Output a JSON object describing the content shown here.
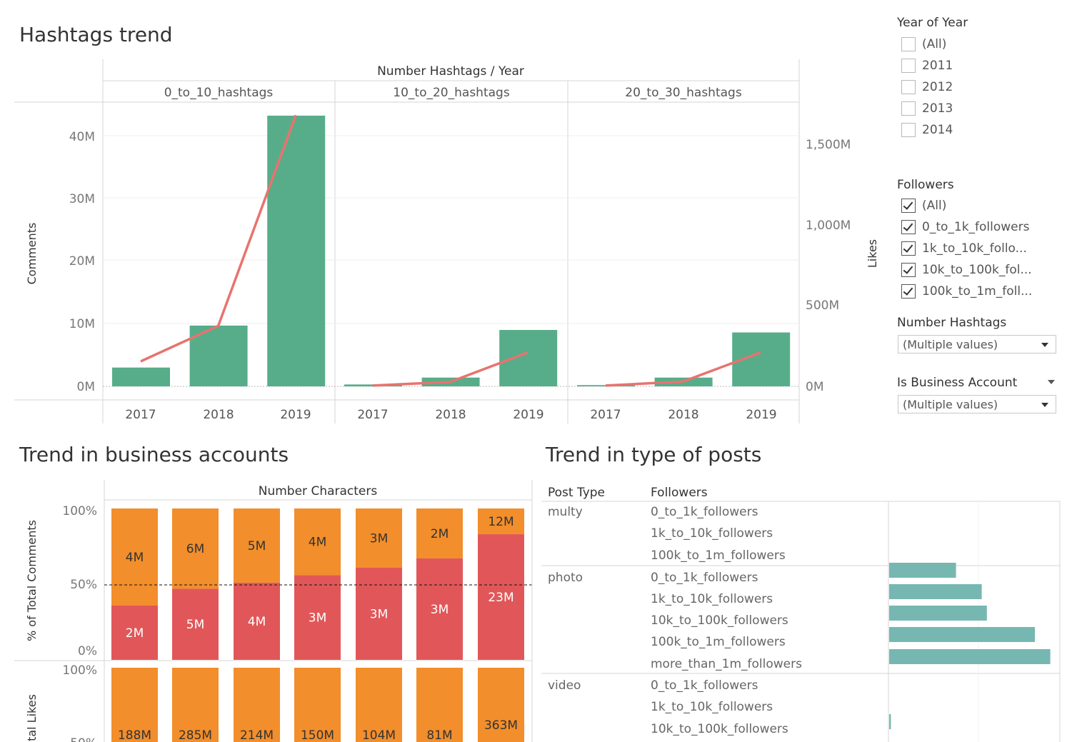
{
  "colors": {
    "bar_green": "#57ad8a",
    "line_red": "#e8736e",
    "orange": "#f28e2b",
    "red": "#e15759",
    "teal": "#76b7b2"
  },
  "hashtags_trend": {
    "title": "Hashtags trend",
    "header_title": "Number Hashtags / Year",
    "panels": [
      "0_to_10_hashtags",
      "10_to_20_hashtags",
      "20_to_30_hashtags"
    ],
    "years": [
      "2017",
      "2018",
      "2019"
    ],
    "left_axis_label": "Comments",
    "right_axis_label": "Likes",
    "left_ticks": [
      "40M",
      "30M",
      "20M",
      "10M",
      "0M"
    ],
    "right_ticks": [
      "1,500M",
      "1,000M",
      "500M",
      "0M"
    ]
  },
  "business_trend": {
    "title": "Trend in business accounts",
    "header_title": "Number Characters",
    "axis1_label": "% of Total Comments",
    "axis2_label": "tal Likes",
    "ticks1": [
      "100%",
      "50%",
      "0%"
    ],
    "ticks2": [
      "100%",
      "50%"
    ]
  },
  "posts_trend": {
    "title": "Trend in type of posts",
    "col_post_type": "Post Type",
    "col_followers": "Followers",
    "groups": [
      {
        "type": "multy",
        "rows": [
          "0_to_1k_followers",
          "1k_to_10k_followers",
          "100k_to_1m_followers"
        ]
      },
      {
        "type": "photo",
        "rows": [
          "0_to_1k_followers",
          "1k_to_10k_followers",
          "10k_to_100k_followers",
          "100k_to_1m_followers",
          "more_than_1m_followers"
        ]
      },
      {
        "type": "video",
        "rows": [
          "0_to_1k_followers",
          "1k_to_10k_followers",
          "10k_to_100k_followers"
        ]
      }
    ]
  },
  "filters": {
    "year": {
      "title": "Year of Year",
      "options": [
        {
          "label": "(All)",
          "checked": false
        },
        {
          "label": "2011",
          "checked": false
        },
        {
          "label": "2012",
          "checked": false
        },
        {
          "label": "2013",
          "checked": false
        },
        {
          "label": "2014",
          "checked": false
        }
      ]
    },
    "followers": {
      "title": "Followers",
      "options": [
        {
          "label": "(All)",
          "checked": true
        },
        {
          "label": "0_to_1k_followers",
          "checked": true
        },
        {
          "label": "1k_to_10k_follo...",
          "checked": true
        },
        {
          "label": "10k_to_100k_fol...",
          "checked": true
        },
        {
          "label": "100k_to_1m_foll...",
          "checked": true
        }
      ]
    },
    "number_hashtags": {
      "title": "Number Hashtags",
      "value": "(Multiple values)"
    },
    "is_business": {
      "title": "Is Business Account",
      "value": "(Multiple values)"
    }
  },
  "chart_data": [
    {
      "type": "bar",
      "title": "Hashtags trend",
      "xlabel": "Number Hashtags / Year",
      "ylabel": "Comments",
      "y2label": "Likes",
      "ylim": [
        0,
        43000000
      ],
      "y2lim": [
        0,
        1700000000
      ],
      "panels": [
        {
          "name": "0_to_10_hashtags",
          "categories": [
            "2017",
            "2018",
            "2019"
          ],
          "comments": [
            3000000,
            9700000,
            43200000
          ],
          "likes": [
            155000000,
            375000000,
            1680000000
          ]
        },
        {
          "name": "10_to_20_hashtags",
          "categories": [
            "2017",
            "2018",
            "2019"
          ],
          "comments": [
            300000,
            1400000,
            9000000
          ],
          "likes": [
            5000000,
            28000000,
            210000000
          ]
        },
        {
          "name": "20_to_30_hashtags",
          "categories": [
            "2017",
            "2018",
            "2019"
          ],
          "comments": [
            200000,
            1400000,
            8600000
          ],
          "likes": [
            5000000,
            30000000,
            210000000
          ]
        }
      ],
      "grid": true
    },
    {
      "type": "bar",
      "title": "Trend in business accounts",
      "xlabel": "Number Characters",
      "ylabel": "% of Total Comments",
      "ylim": [
        0,
        100
      ],
      "reference_line": 50,
      "series": [
        {
          "name": "top",
          "pct": [
            64,
            53,
            49,
            44,
            39,
            33,
            17
          ],
          "labels": [
            "4M",
            "6M",
            "5M",
            "4M",
            "3M",
            "2M",
            "12M"
          ]
        },
        {
          "name": "bottom",
          "pct": [
            36,
            47,
            51,
            56,
            61,
            67,
            83
          ],
          "labels": [
            "2M",
            "5M",
            "4M",
            "3M",
            "3M",
            "3M",
            "23M"
          ]
        }
      ]
    },
    {
      "type": "bar",
      "title": "Trend in business accounts",
      "ylabel": "tal Likes",
      "ylim": [
        0,
        100
      ],
      "series": [
        {
          "name": "top",
          "pct": [
            100,
            100,
            100,
            100,
            97,
            95,
            80
          ],
          "labels": [
            "188M",
            "285M",
            "214M",
            "150M",
            "104M",
            "81M",
            "363M"
          ]
        },
        {
          "name": "bottom",
          "pct": [
            0,
            0,
            0,
            0,
            3,
            5,
            20
          ],
          "labels": [
            "",
            "",
            "",
            "",
            "",
            "",
            ""
          ]
        }
      ]
    },
    {
      "type": "bar",
      "title": "Trend in type of posts",
      "orientation": "horizontal",
      "categories": [
        "multy / 0_to_1k_followers",
        "multy / 1k_to_10k_followers",
        "multy / 100k_to_1m_followers",
        "photo / 0_to_1k_followers",
        "photo / 1k_to_10k_followers",
        "photo / 10k_to_100k_followers",
        "photo / 100k_to_1m_followers",
        "photo / more_than_1m_followers",
        "video / 0_to_1k_followers",
        "video / 1k_to_10k_followers",
        "video / 10k_to_100k_followers"
      ],
      "values": [
        0,
        0,
        0,
        0.39,
        0.54,
        0.57,
        0.85,
        0.94,
        0,
        0,
        0.01
      ]
    }
  ]
}
